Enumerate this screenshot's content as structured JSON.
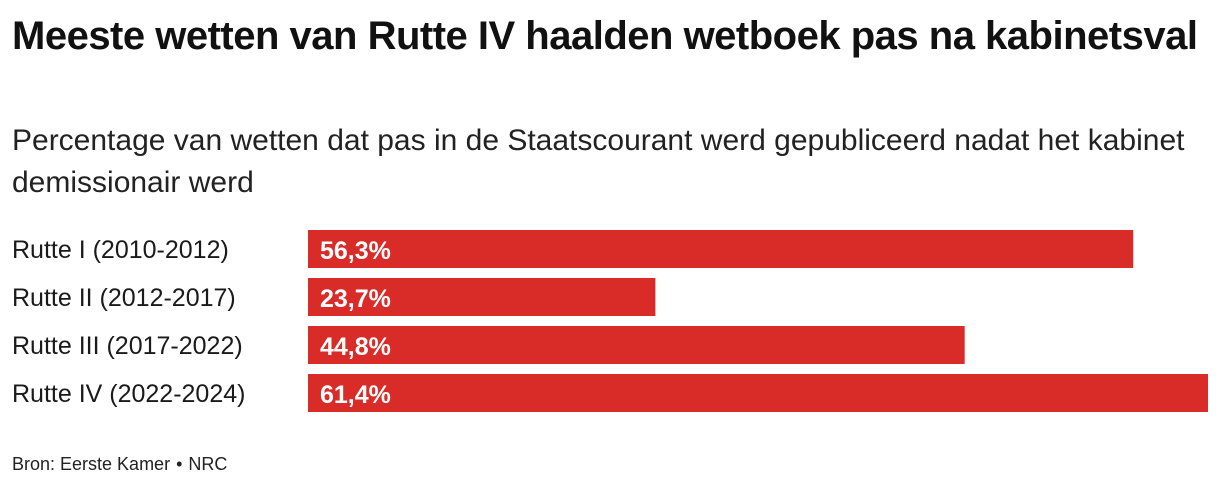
{
  "chart_data": {
    "type": "bar",
    "orientation": "horizontal",
    "title": "Meeste wetten van Rutte IV haalden wetboek pas na kabinetsval",
    "subtitle": "Percentage van wetten dat pas in de Staatscourant werd gepubliceerd nadat het kabinet demissionair werd",
    "categories": [
      "Rutte I (2010-2012)",
      "Rutte II (2012-2017)",
      "Rutte III (2017-2022)",
      "Rutte IV (2022-2024)"
    ],
    "values": [
      56.3,
      23.7,
      44.8,
      61.4
    ],
    "value_labels": [
      "56,3%",
      "23,7%",
      "44,8%",
      "61,4%"
    ],
    "xlim": [
      0,
      61.4
    ],
    "grid": false,
    "bar_color": "#d92b27"
  },
  "source": {
    "label": "Bron: Eerste Kamer",
    "separator": "•",
    "publisher": "NRC"
  }
}
